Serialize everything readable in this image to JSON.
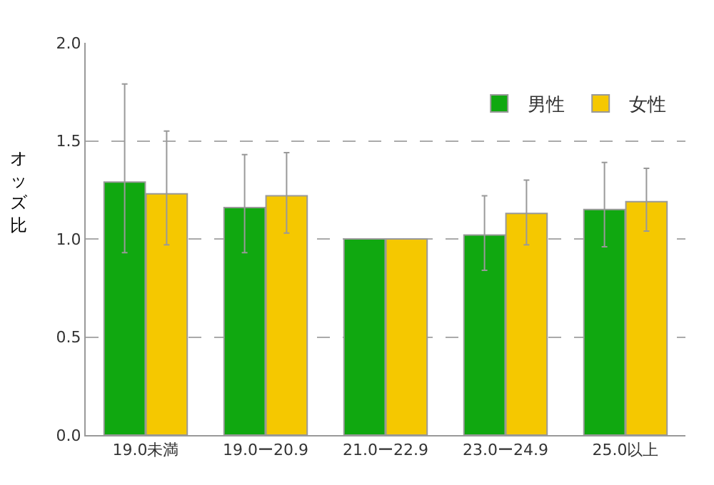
{
  "chart_data": {
    "type": "bar",
    "ylabel": "オッズ比",
    "categories": [
      "19.0未満",
      "19.0ー20.9",
      "21.0ー22.9",
      "23.0ー24.9",
      "25.0以上"
    ],
    "series": [
      {
        "name": "男性",
        "color": "#10a810",
        "values": [
          1.29,
          1.16,
          1.0,
          1.02,
          1.15
        ],
        "errors": [
          [
            0.93,
            1.79
          ],
          [
            0.93,
            1.43
          ],
          null,
          [
            0.84,
            1.22
          ],
          [
            0.96,
            1.39
          ]
        ]
      },
      {
        "name": "女性",
        "color": "#f5c800",
        "values": [
          1.23,
          1.22,
          1.0,
          1.13,
          1.19
        ],
        "errors": [
          [
            0.97,
            1.55
          ],
          [
            1.03,
            1.44
          ],
          null,
          [
            0.97,
            1.3
          ],
          [
            1.04,
            1.36
          ]
        ]
      }
    ],
    "ylim": [
      0,
      2.0
    ],
    "yticks": [
      {
        "value": 0,
        "label": "0.0"
      },
      {
        "value": 0.5,
        "label": "0.5"
      },
      {
        "value": 1.0,
        "label": "1.0"
      },
      {
        "value": 1.5,
        "label": "1.5"
      },
      {
        "value": 2.0,
        "label": "2.0"
      }
    ],
    "grid": "y",
    "legend": "top right"
  }
}
